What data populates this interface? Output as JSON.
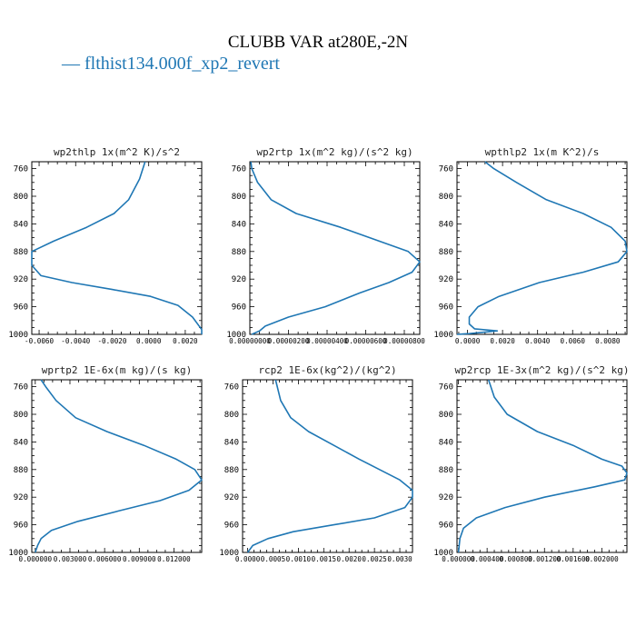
{
  "title": "CLUBB VAR at280E,-2N",
  "legend": {
    "dash": "—",
    "label": "flthist134.000f_xp2_revert",
    "color": "#1f77b4"
  },
  "chart_data": [
    {
      "type": "line",
      "title": "wp2thlp  1x(m^2 K)/s^2",
      "xlim": [
        -0.0064,
        0.0029
      ],
      "ylim": [
        1000,
        750
      ],
      "xticks": [
        -0.006,
        -0.004,
        -0.002,
        0.0,
        0.002
      ],
      "xtick_labels": [
        "-0.0060",
        "-0.0040",
        "-0.0020",
        "0.0000",
        "0.0020"
      ],
      "yticks": [
        760,
        800,
        840,
        880,
        920,
        960,
        1000
      ],
      "series": [
        {
          "color": "#1f77b4",
          "x": [
            -0.0002,
            -0.0005,
            -0.0011,
            -0.0019,
            -0.0034,
            -0.0052,
            -0.0064,
            -0.0064,
            -0.0059,
            -0.0042,
            -0.002,
            0.0001,
            0.0016,
            0.0024,
            0.0029,
            0.0029
          ],
          "y": [
            750,
            775,
            805,
            825,
            845,
            865,
            880,
            900,
            915,
            925,
            935,
            945,
            958,
            975,
            993,
            1000
          ]
        }
      ]
    },
    {
      "type": "line",
      "title": "wp2rtp  1x(m^2 kg)/(s^2 kg)",
      "xlim": [
        0.0,
        8.8e-06
      ],
      "ylim": [
        1000,
        750
      ],
      "xticks": [
        0.0,
        2e-06,
        4e-06,
        6e-06,
        8e-06
      ],
      "xtick_labels": [
        "0.00000000",
        "0.00000200",
        "0.00000400",
        "0.00000600",
        "0.00000800"
      ],
      "yticks": [
        760,
        800,
        840,
        880,
        920,
        960,
        1000
      ],
      "series": [
        {
          "color": "#1f77b4",
          "x": [
            5e-08,
            1e-07,
            4e-07,
            1.1e-06,
            2.4e-06,
            4.7e-06,
            6.7e-06,
            8.2e-06,
            8.8e-06,
            8.4e-06,
            7.2e-06,
            5.7e-06,
            3.9e-06,
            2e-06,
            8e-07,
            5e-07,
            1e-07
          ],
          "y": [
            750,
            760,
            780,
            805,
            825,
            845,
            865,
            880,
            895,
            910,
            925,
            940,
            960,
            975,
            988,
            995,
            1000
          ]
        }
      ]
    },
    {
      "type": "line",
      "title": "wpthlp2  1x(m K^2)/s",
      "xlim": [
        -0.0006,
        0.0091
      ],
      "ylim": [
        1000,
        750
      ],
      "xticks": [
        0.0,
        0.002,
        0.004,
        0.006,
        0.008
      ],
      "xtick_labels": [
        "0.0000",
        "0.0020",
        "0.0040",
        "0.0060",
        "0.0080"
      ],
      "yticks": [
        760,
        800,
        840,
        880,
        920,
        960,
        1000
      ],
      "series": [
        {
          "color": "#1f77b4",
          "x": [
            0.001,
            0.0015,
            0.0028,
            0.0045,
            0.0066,
            0.0082,
            0.009,
            0.0091,
            0.0086,
            0.0066,
            0.0041,
            0.0018,
            0.0006,
            0.0001,
            0.0001,
            0.0004,
            0.0017,
            0.0001,
            -0.0006
          ],
          "y": [
            750,
            760,
            780,
            805,
            825,
            845,
            865,
            880,
            895,
            910,
            925,
            945,
            960,
            975,
            985,
            992,
            995,
            999,
            1000
          ]
        }
      ]
    },
    {
      "type": "line",
      "title": "wprtp2  1E-6x(m kg)/(s kg)",
      "xlim": [
        -0.0003,
        0.0144
      ],
      "ylim": [
        1000,
        750
      ],
      "xticks": [
        0.0,
        0.003,
        0.006,
        0.009,
        0.012
      ],
      "xtick_labels": [
        "0.000000",
        "0.003000",
        "0.006000",
        "0.009000",
        "0.012000"
      ],
      "yticks": [
        760,
        800,
        840,
        880,
        920,
        960,
        1000
      ],
      "series": [
        {
          "color": "#1f77b4",
          "x": [
            0.0005,
            0.0009,
            0.0018,
            0.0035,
            0.0062,
            0.0094,
            0.0122,
            0.0138,
            0.0144,
            0.0133,
            0.0108,
            0.0072,
            0.0037,
            0.0014,
            0.0005,
            0.0002,
            0.0
          ],
          "y": [
            750,
            760,
            780,
            805,
            825,
            845,
            865,
            880,
            895,
            910,
            925,
            940,
            955,
            968,
            980,
            990,
            1000
          ]
        }
      ]
    },
    {
      "type": "line",
      "title": "rcp2  1E-6x(kg^2)/(kg^2)",
      "xlim": [
        -0.0001,
        0.00325
      ],
      "ylim": [
        1000,
        750
      ],
      "xticks": [
        0.0,
        0.0005,
        0.001,
        0.0015,
        0.002,
        0.0025,
        0.003
      ],
      "xtick_labels": [
        "0.0000",
        "0.0005",
        "0.0010",
        "0.0015",
        "0.0020",
        "0.0025",
        "0.0030"
      ],
      "yticks": [
        760,
        800,
        840,
        880,
        920,
        960,
        1000
      ],
      "series": [
        {
          "color": "#1f77b4",
          "x": [
            0.00055,
            0.00065,
            0.00085,
            0.0012,
            0.0017,
            0.0022,
            0.0026,
            0.003,
            0.00325,
            0.00325,
            0.0031,
            0.0025,
            0.0017,
            0.0009,
            0.0004,
            0.0001,
            0.0
          ],
          "y": [
            750,
            780,
            805,
            825,
            845,
            865,
            880,
            895,
            910,
            920,
            935,
            950,
            960,
            970,
            980,
            990,
            1000
          ]
        }
      ]
    },
    {
      "type": "line",
      "title": "wp2rcp  1E-3x(m^2 kg)/(s^2 kg)",
      "xlim": [
        -2e-05,
        0.00235
      ],
      "ylim": [
        1000,
        750
      ],
      "xticks": [
        0.0,
        0.0004,
        0.0008,
        0.0012,
        0.0016,
        0.002
      ],
      "xtick_labels": [
        "0.000000",
        "0.000400",
        "0.000800",
        "0.001200",
        "0.001600",
        "0.002000"
      ],
      "yticks": [
        760,
        800,
        840,
        880,
        920,
        960,
        1000
      ],
      "series": [
        {
          "color": "#1f77b4",
          "x": [
            0.00042,
            0.0005,
            0.00068,
            0.0011,
            0.0016,
            0.002,
            0.00228,
            0.00235,
            0.00232,
            0.0019,
            0.0012,
            0.00065,
            0.00025,
            7e-05,
            2e-05,
            0.0
          ],
          "y": [
            750,
            775,
            800,
            825,
            845,
            865,
            875,
            885,
            895,
            905,
            920,
            935,
            950,
            965,
            980,
            1000
          ]
        }
      ]
    }
  ]
}
